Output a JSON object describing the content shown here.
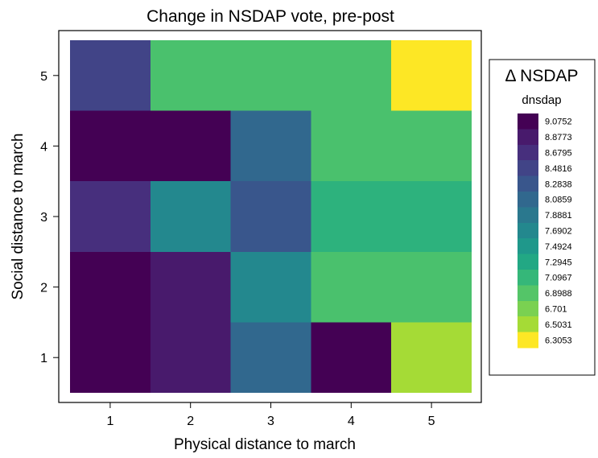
{
  "chart_data": {
    "type": "heatmap",
    "title": "Change in NSDAP vote, pre-post",
    "xlabel": "Physical distance to march",
    "ylabel": "Social distance to march",
    "x_ticks": [
      "1",
      "2",
      "3",
      "4",
      "5"
    ],
    "y_ticks": [
      "1",
      "2",
      "3",
      "4",
      "5"
    ],
    "x_range": [
      0.5,
      5.5
    ],
    "y_range": [
      0.5,
      5.5
    ],
    "grid": false,
    "legend_placement": "right",
    "legend": {
      "title": "Δ NSDAP",
      "subtitle": "dnsdap",
      "keys": [
        {
          "label": "9.0752",
          "color": "#440154"
        },
        {
          "label": "8.8773",
          "color": "#481a6c"
        },
        {
          "label": "8.6795",
          "color": "#472f7d"
        },
        {
          "label": "8.4816",
          "color": "#414487"
        },
        {
          "label": "8.2838",
          "color": "#39568c"
        },
        {
          "label": "8.0859",
          "color": "#31688e"
        },
        {
          "label": "7.8881",
          "color": "#2a788e"
        },
        {
          "label": "7.6902",
          "color": "#23888e"
        },
        {
          "label": "7.4924",
          "color": "#1f988b"
        },
        {
          "label": "7.2945",
          "color": "#22a884"
        },
        {
          "label": "7.0967",
          "color": "#35b779"
        },
        {
          "label": "6.8988",
          "color": "#54c568"
        },
        {
          "label": "6.701",
          "color": "#7ad151"
        },
        {
          "label": "6.5031",
          "color": "#a5db36"
        },
        {
          "label": "6.3053",
          "color": "#fde725"
        }
      ]
    },
    "cells": [
      {
        "x": 1,
        "y": 5,
        "color": "#414487"
      },
      {
        "x": 2,
        "y": 5,
        "color": "#4ac16d"
      },
      {
        "x": 3,
        "y": 5,
        "color": "#4ac16d"
      },
      {
        "x": 4,
        "y": 5,
        "color": "#4ac16d"
      },
      {
        "x": 5,
        "y": 5,
        "color": "#fde725"
      },
      {
        "x": 1,
        "y": 4,
        "color": "#440154"
      },
      {
        "x": 2,
        "y": 4,
        "color": "#440154"
      },
      {
        "x": 3,
        "y": 4,
        "color": "#31688e"
      },
      {
        "x": 4,
        "y": 4,
        "color": "#4ac16d"
      },
      {
        "x": 5,
        "y": 4,
        "color": "#4ac16d"
      },
      {
        "x": 1,
        "y": 3,
        "color": "#472f7d"
      },
      {
        "x": 2,
        "y": 3,
        "color": "#23888e"
      },
      {
        "x": 3,
        "y": 3,
        "color": "#39568c"
      },
      {
        "x": 4,
        "y": 3,
        "color": "#2db27d"
      },
      {
        "x": 5,
        "y": 3,
        "color": "#2db27d"
      },
      {
        "x": 1,
        "y": 2,
        "color": "#440154"
      },
      {
        "x": 2,
        "y": 2,
        "color": "#481a6c"
      },
      {
        "x": 3,
        "y": 2,
        "color": "#23888e"
      },
      {
        "x": 4,
        "y": 2,
        "color": "#4ac16d"
      },
      {
        "x": 5,
        "y": 2,
        "color": "#4ac16d"
      },
      {
        "x": 1,
        "y": 1,
        "color": "#440154"
      },
      {
        "x": 2,
        "y": 1,
        "color": "#481a6c"
      },
      {
        "x": 3,
        "y": 1,
        "color": "#31688e"
      },
      {
        "x": 4,
        "y": 1,
        "color": "#440154"
      },
      {
        "x": 5,
        "y": 1,
        "color": "#a5db36"
      }
    ]
  }
}
